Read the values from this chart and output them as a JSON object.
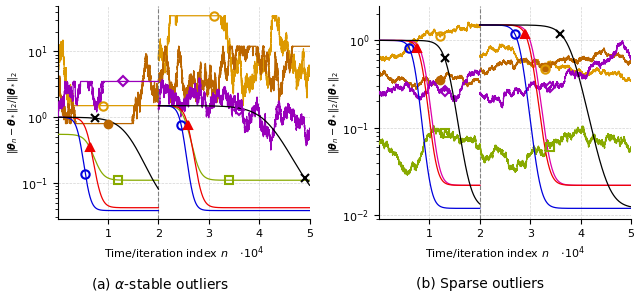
{
  "title_a": "(a) $\\alpha$-stable outliers",
  "title_b": "(b) Sparse outliers",
  "ylabel": "$\\|\\boldsymbol{\\theta}_n - \\boldsymbol{\\theta}_*\\|_2/\\|\\boldsymbol{\\theta}_*\\|_2$",
  "xlabel": "Time/iteration index $n$",
  "colors": {
    "black": "#000000",
    "blue": "#0000dd",
    "red": "#ee0000",
    "magenta": "#dd00aa",
    "green": "#88aa00",
    "purple": "#9900bb",
    "orange_light": "#dd9900",
    "orange_dark": "#bb6600"
  },
  "lw": 0.9,
  "ms": 6
}
